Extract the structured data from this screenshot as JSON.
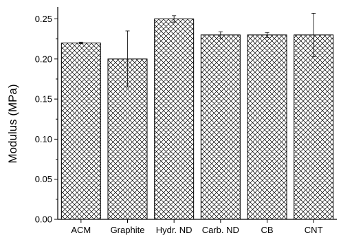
{
  "chart_data": {
    "type": "bar",
    "title": "",
    "xlabel": "",
    "ylabel": "Modulus (MPa)",
    "ylim": [
      0,
      0.265
    ],
    "yticks": [
      "0.00",
      "0.05",
      "0.10",
      "0.15",
      "0.20",
      "0.25"
    ],
    "categories": [
      "ACM",
      "Graphite",
      "Hydr. ND",
      "Carb. ND",
      "CB",
      "CNT"
    ],
    "values": [
      0.22,
      0.2,
      0.25,
      0.23,
      0.23,
      0.23
    ],
    "errors": [
      0.001,
      0.035,
      0.004,
      0.004,
      0.003,
      0.027
    ],
    "grid": false,
    "fill_pattern": "crosshatch",
    "bar_color": "#000000"
  }
}
